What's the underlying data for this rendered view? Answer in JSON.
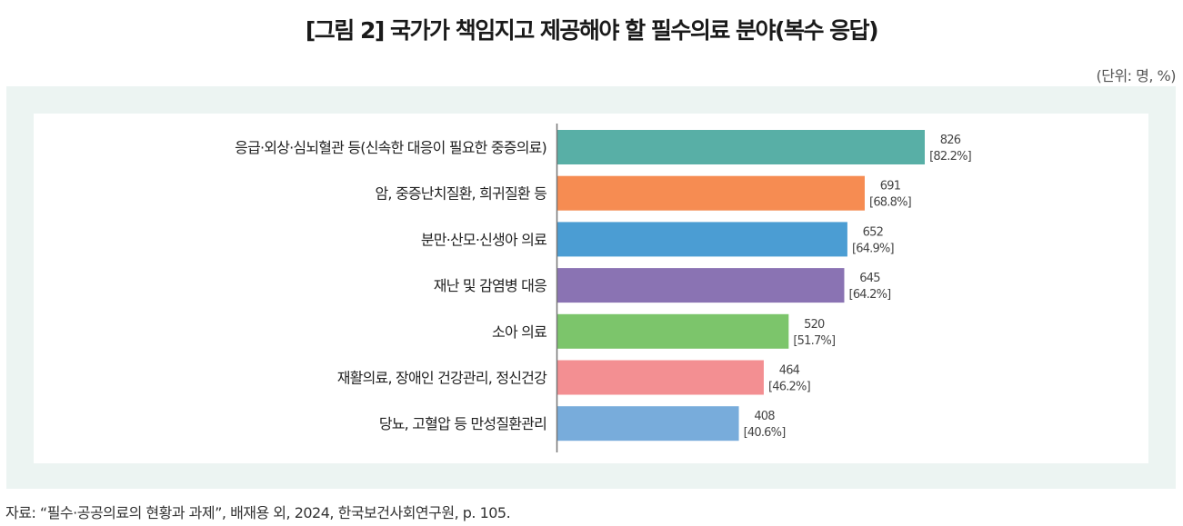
{
  "title": "[그림 2] 국가가 책임지고 제공해야 할 필수의료 분야(복수 응답)",
  "unit": "(단위: 명, %)",
  "source": "자료: “필수·공공의료의 현황과 과제”, 배재용 외, 2024, 한국보건사회연구원, p. 105.",
  "chart_data": {
    "type": "bar",
    "orientation": "horizontal",
    "title": "[그림 2] 국가가 책임지고 제공해야 할 필수의료 분야(복수 응답)",
    "categories": [
      "응급·외상·심뇌혈관 등(신속한 대응이 필요한 중증의료)",
      "암, 중증난치질환, 희귀질환 등",
      "분만·산모·신생아 의료",
      "재난 및 감염병 대응",
      "소아 의료",
      "재활의료, 장애인 건강관리, 정신건강",
      "당뇨, 고혈압 등 만성질환관리"
    ],
    "values": [
      826,
      691,
      652,
      645,
      520,
      464,
      408
    ],
    "percent_labels": [
      "[82.2%]",
      "[68.8%]",
      "[64.9%]",
      "[64.2%]",
      "[51.7%]",
      "[46.2%]",
      "[40.6%]"
    ],
    "colors": [
      "#58afa6",
      "#f68c52",
      "#4b9dd3",
      "#8a73b3",
      "#7cc56b",
      "#f38f92",
      "#78acdb"
    ],
    "xlim": [
      0,
      826
    ],
    "grid": false
  }
}
